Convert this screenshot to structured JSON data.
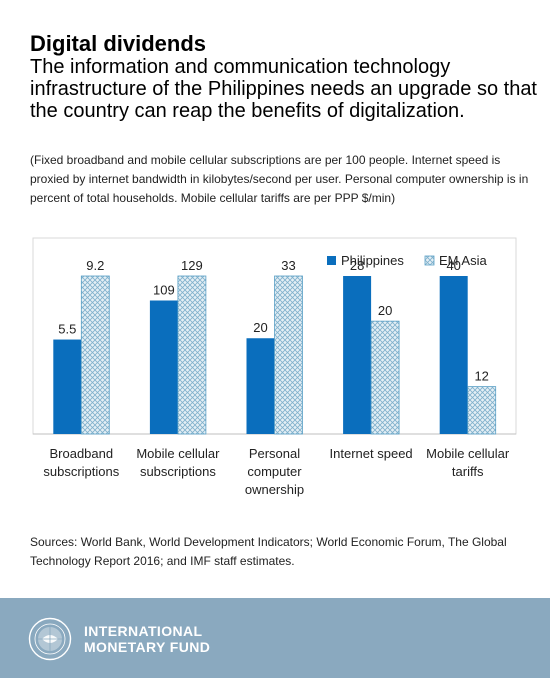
{
  "header": {
    "title": "Digital dividends",
    "subtitle": "The information and communication technology infrastructure of the Philippines needs an upgrade so that the country can reap the benefits of digitalization.",
    "note": "(Fixed broadband and mobile cellular subscriptions are per 100 people. Internet speed is proxied by internet bandwidth in kilobytes/second per user. Personal computer ownership is in percent of total households. Mobile cellular tariffs are per PPP $/min)"
  },
  "chart_data": {
    "type": "bar",
    "categories": [
      "Broadband subscriptions",
      "Mobile cellular subscriptions",
      "Personal computer ownership",
      "Internet speed",
      "Mobile cellular tariffs"
    ],
    "series": [
      {
        "name": "Philippines",
        "values": [
          5.5,
          109,
          20,
          28,
          40
        ],
        "labels": [
          "5.5",
          "109",
          "20",
          "28",
          "40"
        ],
        "color": "#0a6ebd"
      },
      {
        "name": "EM Asia",
        "values": [
          9.2,
          129,
          33,
          20,
          12
        ],
        "labels": [
          "9.2",
          "129",
          "33",
          "20",
          "12"
        ],
        "color": "#cfe3ee",
        "pattern": "crosshatch"
      }
    ],
    "legend": "top-right",
    "grid": false,
    "note": "Each category is drawn on its own scale"
  },
  "sources": "Sources: World Bank, World Development Indicators; World Economic Forum, The Global Technology Report 2016; and IMF staff estimates.",
  "footer": {
    "org_line1": "INTERNATIONAL",
    "org_line2": "MONETARY FUND",
    "logo_icon": "imf-seal-icon",
    "background": "#8aa9bf"
  }
}
